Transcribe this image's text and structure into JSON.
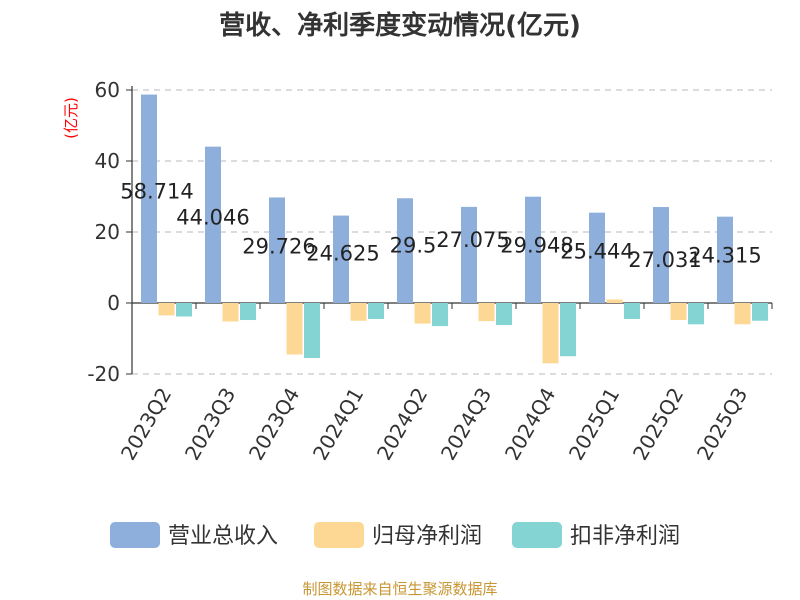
{
  "chart_data": {
    "type": "bar",
    "title": "营收、净利季度变动情况(亿元)",
    "unit_label": "(亿元)",
    "categories": [
      "2023Q2",
      "2023Q3",
      "2023Q4",
      "2024Q1",
      "2024Q2",
      "2024Q3",
      "2024Q4",
      "2025Q1",
      "2025Q2",
      "2025Q3"
    ],
    "series": [
      {
        "name": "营业总收入",
        "values": [
          58.714,
          44.046,
          29.726,
          24.625,
          29.5,
          27.075,
          29.948,
          25.444,
          27.031,
          24.315
        ]
      },
      {
        "name": "归母净利润",
        "values": [
          -3.5,
          -5.2,
          -14.5,
          -5.0,
          -5.8,
          -5.1,
          -17.0,
          1.0,
          -4.8,
          -6.0
        ]
      },
      {
        "name": "扣非净利润",
        "values": [
          -3.8,
          -4.8,
          -15.5,
          -4.5,
          -6.5,
          -6.2,
          -15.0,
          -4.5,
          -6.0,
          -5.0
        ]
      }
    ],
    "data_labels": [
      "58.714",
      "44.046",
      "29.726",
      "24.625",
      "29.5",
      "27.075",
      "29.948",
      "25.444",
      "27.031",
      "24.315"
    ],
    "ylim": [
      -20,
      60
    ],
    "yticks": [
      "60",
      "40",
      "20",
      "0",
      "-20"
    ],
    "grid": true,
    "legend_position": "bottom",
    "colors": [
      "#8eaedb",
      "#fdd794",
      "#85d4d4"
    ],
    "unit_color": "#ff0000",
    "source_color": "#c89633"
  },
  "footer": {
    "source": "制图数据来自恒生聚源数据库"
  }
}
